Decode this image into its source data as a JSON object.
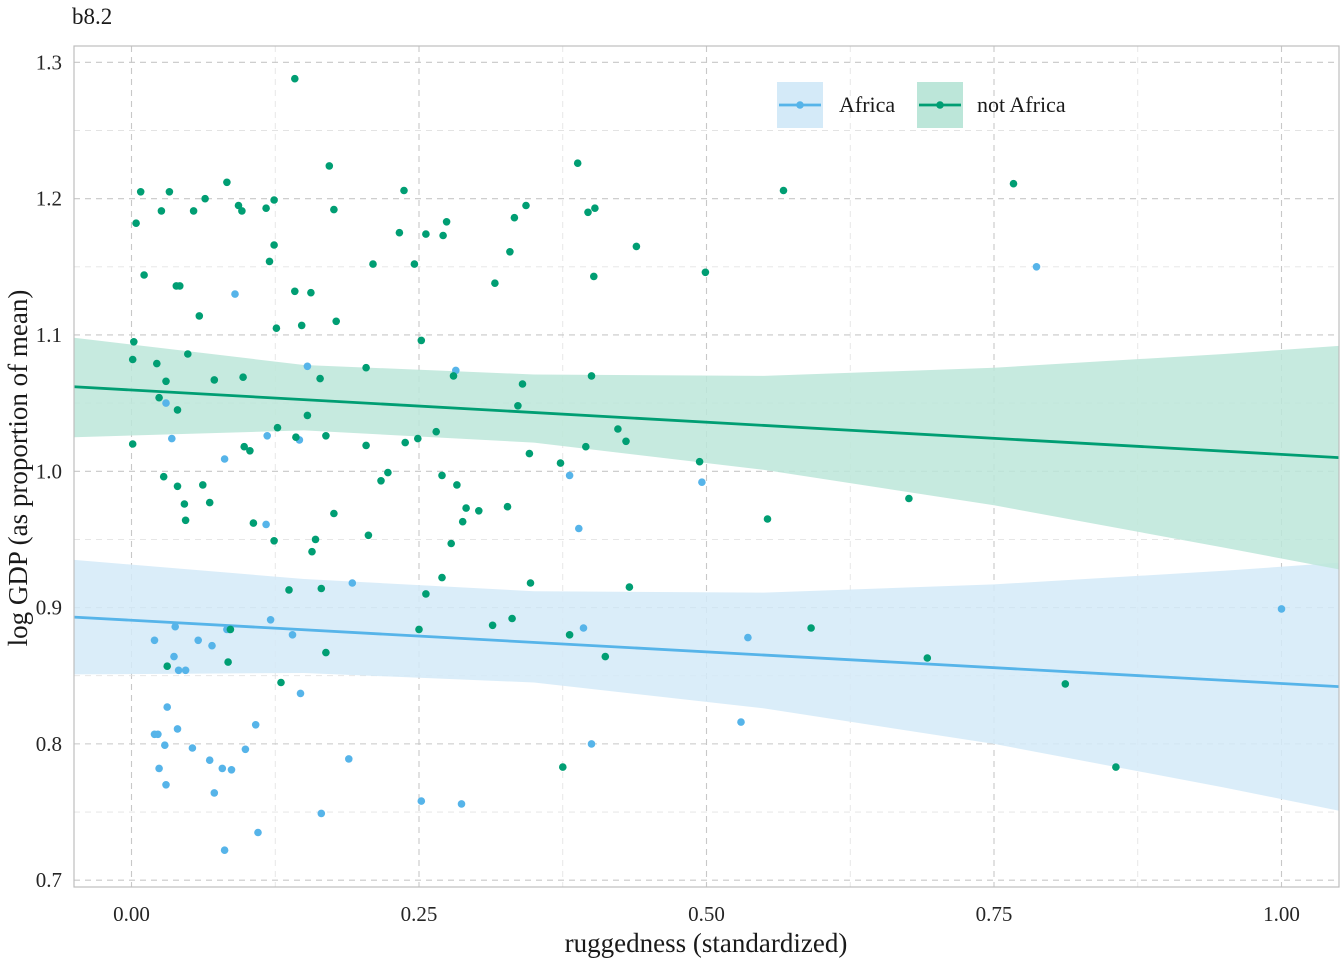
{
  "colors": {
    "africa": "#56B4E9",
    "africa_ribbon": "#d4eaf8",
    "not_africa": "#009E73",
    "not_africa_ribbon": "#bce6d9",
    "panel_border": "#bdbdbd"
  },
  "chart_data": {
    "type": "scatter",
    "title": "b8.2",
    "xlabel": "ruggedness (standardized)",
    "ylabel": "log GDP (as proportion of mean)",
    "xlim": [
      -0.05,
      1.05
    ],
    "ylim": [
      0.695,
      1.312
    ],
    "xticks": [
      0,
      0.25,
      0.5,
      0.75,
      1.0
    ],
    "xtick_labels": [
      "0.00",
      "0.25",
      "0.50",
      "0.75",
      "1.00"
    ],
    "yticks": [
      0.7,
      0.8,
      0.9,
      1.0,
      1.1,
      1.2,
      1.3
    ],
    "ytick_labels": [
      "0.7",
      "0.8",
      "0.9",
      "1.0",
      "1.1",
      "1.2",
      "1.3"
    ],
    "grid": true,
    "legend_position": "top-right",
    "series": [
      {
        "name": "Africa",
        "color_key": "africa",
        "fit": {
          "x": [
            -0.05,
            1.05
          ],
          "y": [
            0.893,
            0.842
          ]
        },
        "band": {
          "x": [
            -0.05,
            0.15,
            0.35,
            0.55,
            0.75,
            0.95,
            1.05
          ],
          "lower": [
            0.851,
            0.852,
            0.845,
            0.826,
            0.8,
            0.768,
            0.751
          ],
          "upper": [
            0.935,
            0.921,
            0.912,
            0.911,
            0.917,
            0.927,
            0.933
          ]
        },
        "points": [
          [
            0.02,
            0.876
          ],
          [
            0.02,
            0.807
          ],
          [
            0.023,
            0.807
          ],
          [
            0.024,
            0.782
          ],
          [
            0.03,
            0.77
          ],
          [
            0.031,
            0.827
          ],
          [
            0.029,
            0.799
          ],
          [
            0.037,
            0.864
          ],
          [
            0.038,
            0.886
          ],
          [
            0.04,
            0.811
          ],
          [
            0.041,
            0.854
          ],
          [
            0.047,
            0.854
          ],
          [
            0.053,
            0.797
          ],
          [
            0.058,
            0.876
          ],
          [
            0.068,
            0.788
          ],
          [
            0.072,
            0.764
          ],
          [
            0.07,
            0.872
          ],
          [
            0.079,
            0.782
          ],
          [
            0.081,
            0.722
          ],
          [
            0.083,
            0.884
          ],
          [
            0.087,
            0.781
          ],
          [
            0.085,
            0.884
          ],
          [
            0.099,
            0.796
          ],
          [
            0.108,
            0.814
          ],
          [
            0.11,
            0.735
          ],
          [
            0.121,
            0.891
          ],
          [
            0.14,
            0.88
          ],
          [
            0.147,
            0.837
          ],
          [
            0.165,
            0.749
          ],
          [
            0.189,
            0.789
          ],
          [
            0.192,
            0.918
          ],
          [
            0.03,
            1.05
          ],
          [
            0.035,
            1.024
          ],
          [
            0.081,
            1.009
          ],
          [
            0.09,
            1.13
          ],
          [
            0.118,
            1.026
          ],
          [
            0.117,
            0.961
          ],
          [
            0.146,
            1.023
          ],
          [
            0.153,
            1.077
          ],
          [
            0.282,
            1.074
          ],
          [
            0.252,
            0.758
          ],
          [
            0.287,
            0.756
          ],
          [
            0.381,
            0.997
          ],
          [
            0.389,
            0.958
          ],
          [
            0.393,
            0.885
          ],
          [
            0.4,
            0.8
          ],
          [
            0.496,
            0.992
          ],
          [
            0.53,
            0.816
          ],
          [
            0.536,
            0.878
          ],
          [
            0.787,
            1.15
          ],
          [
            1.0,
            0.899
          ]
        ]
      },
      {
        "name": "not Africa",
        "color_key": "not_africa",
        "fit": {
          "x": [
            -0.05,
            1.05
          ],
          "y": [
            1.062,
            1.01
          ]
        },
        "band": {
          "x": [
            -0.05,
            0.15,
            0.35,
            0.55,
            0.75,
            0.95,
            1.05
          ],
          "lower": [
            1.025,
            1.03,
            1.021,
            1.001,
            0.975,
            0.944,
            0.928
          ],
          "upper": [
            1.098,
            1.078,
            1.071,
            1.07,
            1.076,
            1.086,
            1.092
          ]
        },
        "points": [
          [
            0.004,
            1.182
          ],
          [
            0.008,
            1.205
          ],
          [
            0.011,
            1.144
          ],
          [
            0.002,
            1.095
          ],
          [
            0.001,
            1.082
          ],
          [
            0.001,
            1.02
          ],
          [
            0.022,
            1.079
          ],
          [
            0.026,
            1.191
          ],
          [
            0.033,
            1.205
          ],
          [
            0.024,
            1.054
          ],
          [
            0.03,
            1.066
          ],
          [
            0.028,
            0.996
          ],
          [
            0.031,
            0.857
          ],
          [
            0.039,
            1.136
          ],
          [
            0.042,
            1.136
          ],
          [
            0.04,
            1.045
          ],
          [
            0.04,
            0.989
          ],
          [
            0.046,
            0.976
          ],
          [
            0.047,
            0.964
          ],
          [
            0.049,
            1.086
          ],
          [
            0.054,
            1.191
          ],
          [
            0.059,
            1.114
          ],
          [
            0.062,
            0.99
          ],
          [
            0.064,
            1.2
          ],
          [
            0.068,
            0.977
          ],
          [
            0.072,
            1.067
          ],
          [
            0.083,
            1.212
          ],
          [
            0.093,
            1.195
          ],
          [
            0.096,
            1.191
          ],
          [
            0.097,
            1.069
          ],
          [
            0.098,
            1.018
          ],
          [
            0.103,
            1.015
          ],
          [
            0.106,
            0.962
          ],
          [
            0.084,
            0.86
          ],
          [
            0.086,
            0.884
          ],
          [
            0.117,
            1.193
          ],
          [
            0.12,
            1.154
          ],
          [
            0.124,
            0.949
          ],
          [
            0.124,
            1.199
          ],
          [
            0.124,
            1.166
          ],
          [
            0.126,
            1.105
          ],
          [
            0.127,
            1.032
          ],
          [
            0.13,
            0.845
          ],
          [
            0.137,
            0.913
          ],
          [
            0.142,
            1.288
          ],
          [
            0.142,
            1.132
          ],
          [
            0.143,
            1.025
          ],
          [
            0.148,
            1.107
          ],
          [
            0.153,
            1.041
          ],
          [
            0.156,
            1.131
          ],
          [
            0.157,
            0.941
          ],
          [
            0.16,
            0.95
          ],
          [
            0.164,
            1.068
          ],
          [
            0.165,
            0.914
          ],
          [
            0.169,
            1.026
          ],
          [
            0.169,
            0.867
          ],
          [
            0.172,
            1.224
          ],
          [
            0.176,
            1.192
          ],
          [
            0.176,
            0.969
          ],
          [
            0.178,
            1.11
          ],
          [
            0.204,
            1.076
          ],
          [
            0.204,
            1.019
          ],
          [
            0.206,
            0.953
          ],
          [
            0.21,
            1.152
          ],
          [
            0.217,
            0.993
          ],
          [
            0.223,
            0.999
          ],
          [
            0.233,
            1.175
          ],
          [
            0.237,
            1.206
          ],
          [
            0.238,
            1.021
          ],
          [
            0.246,
            1.152
          ],
          [
            0.249,
            1.024
          ],
          [
            0.25,
            0.884
          ],
          [
            0.252,
            1.096
          ],
          [
            0.256,
            1.174
          ],
          [
            0.256,
            0.91
          ],
          [
            0.265,
            1.029
          ],
          [
            0.27,
            0.922
          ],
          [
            0.27,
            0.997
          ],
          [
            0.271,
            1.173
          ],
          [
            0.274,
            1.183
          ],
          [
            0.278,
            0.947
          ],
          [
            0.28,
            1.07
          ],
          [
            0.283,
            0.99
          ],
          [
            0.288,
            0.963
          ],
          [
            0.291,
            0.973
          ],
          [
            0.302,
            0.971
          ],
          [
            0.314,
            0.887
          ],
          [
            0.316,
            1.138
          ],
          [
            0.327,
            0.974
          ],
          [
            0.329,
            1.161
          ],
          [
            0.331,
            0.892
          ],
          [
            0.333,
            1.186
          ],
          [
            0.336,
            1.048
          ],
          [
            0.34,
            1.064
          ],
          [
            0.343,
            1.195
          ],
          [
            0.346,
            1.013
          ],
          [
            0.347,
            0.918
          ],
          [
            0.373,
            1.006
          ],
          [
            0.375,
            0.783
          ],
          [
            0.381,
            0.88
          ],
          [
            0.388,
            1.226
          ],
          [
            0.395,
            1.018
          ],
          [
            0.397,
            1.19
          ],
          [
            0.4,
            1.07
          ],
          [
            0.402,
            1.143
          ],
          [
            0.403,
            1.193
          ],
          [
            0.412,
            0.864
          ],
          [
            0.423,
            1.031
          ],
          [
            0.43,
            1.022
          ],
          [
            0.433,
            0.915
          ],
          [
            0.439,
            1.165
          ],
          [
            0.494,
            1.007
          ],
          [
            0.499,
            1.146
          ],
          [
            0.553,
            0.965
          ],
          [
            0.567,
            1.206
          ],
          [
            0.591,
            0.885
          ],
          [
            0.676,
            0.98
          ],
          [
            0.692,
            0.863
          ],
          [
            0.767,
            1.211
          ],
          [
            0.812,
            0.844
          ],
          [
            0.856,
            0.783
          ]
        ]
      }
    ]
  }
}
